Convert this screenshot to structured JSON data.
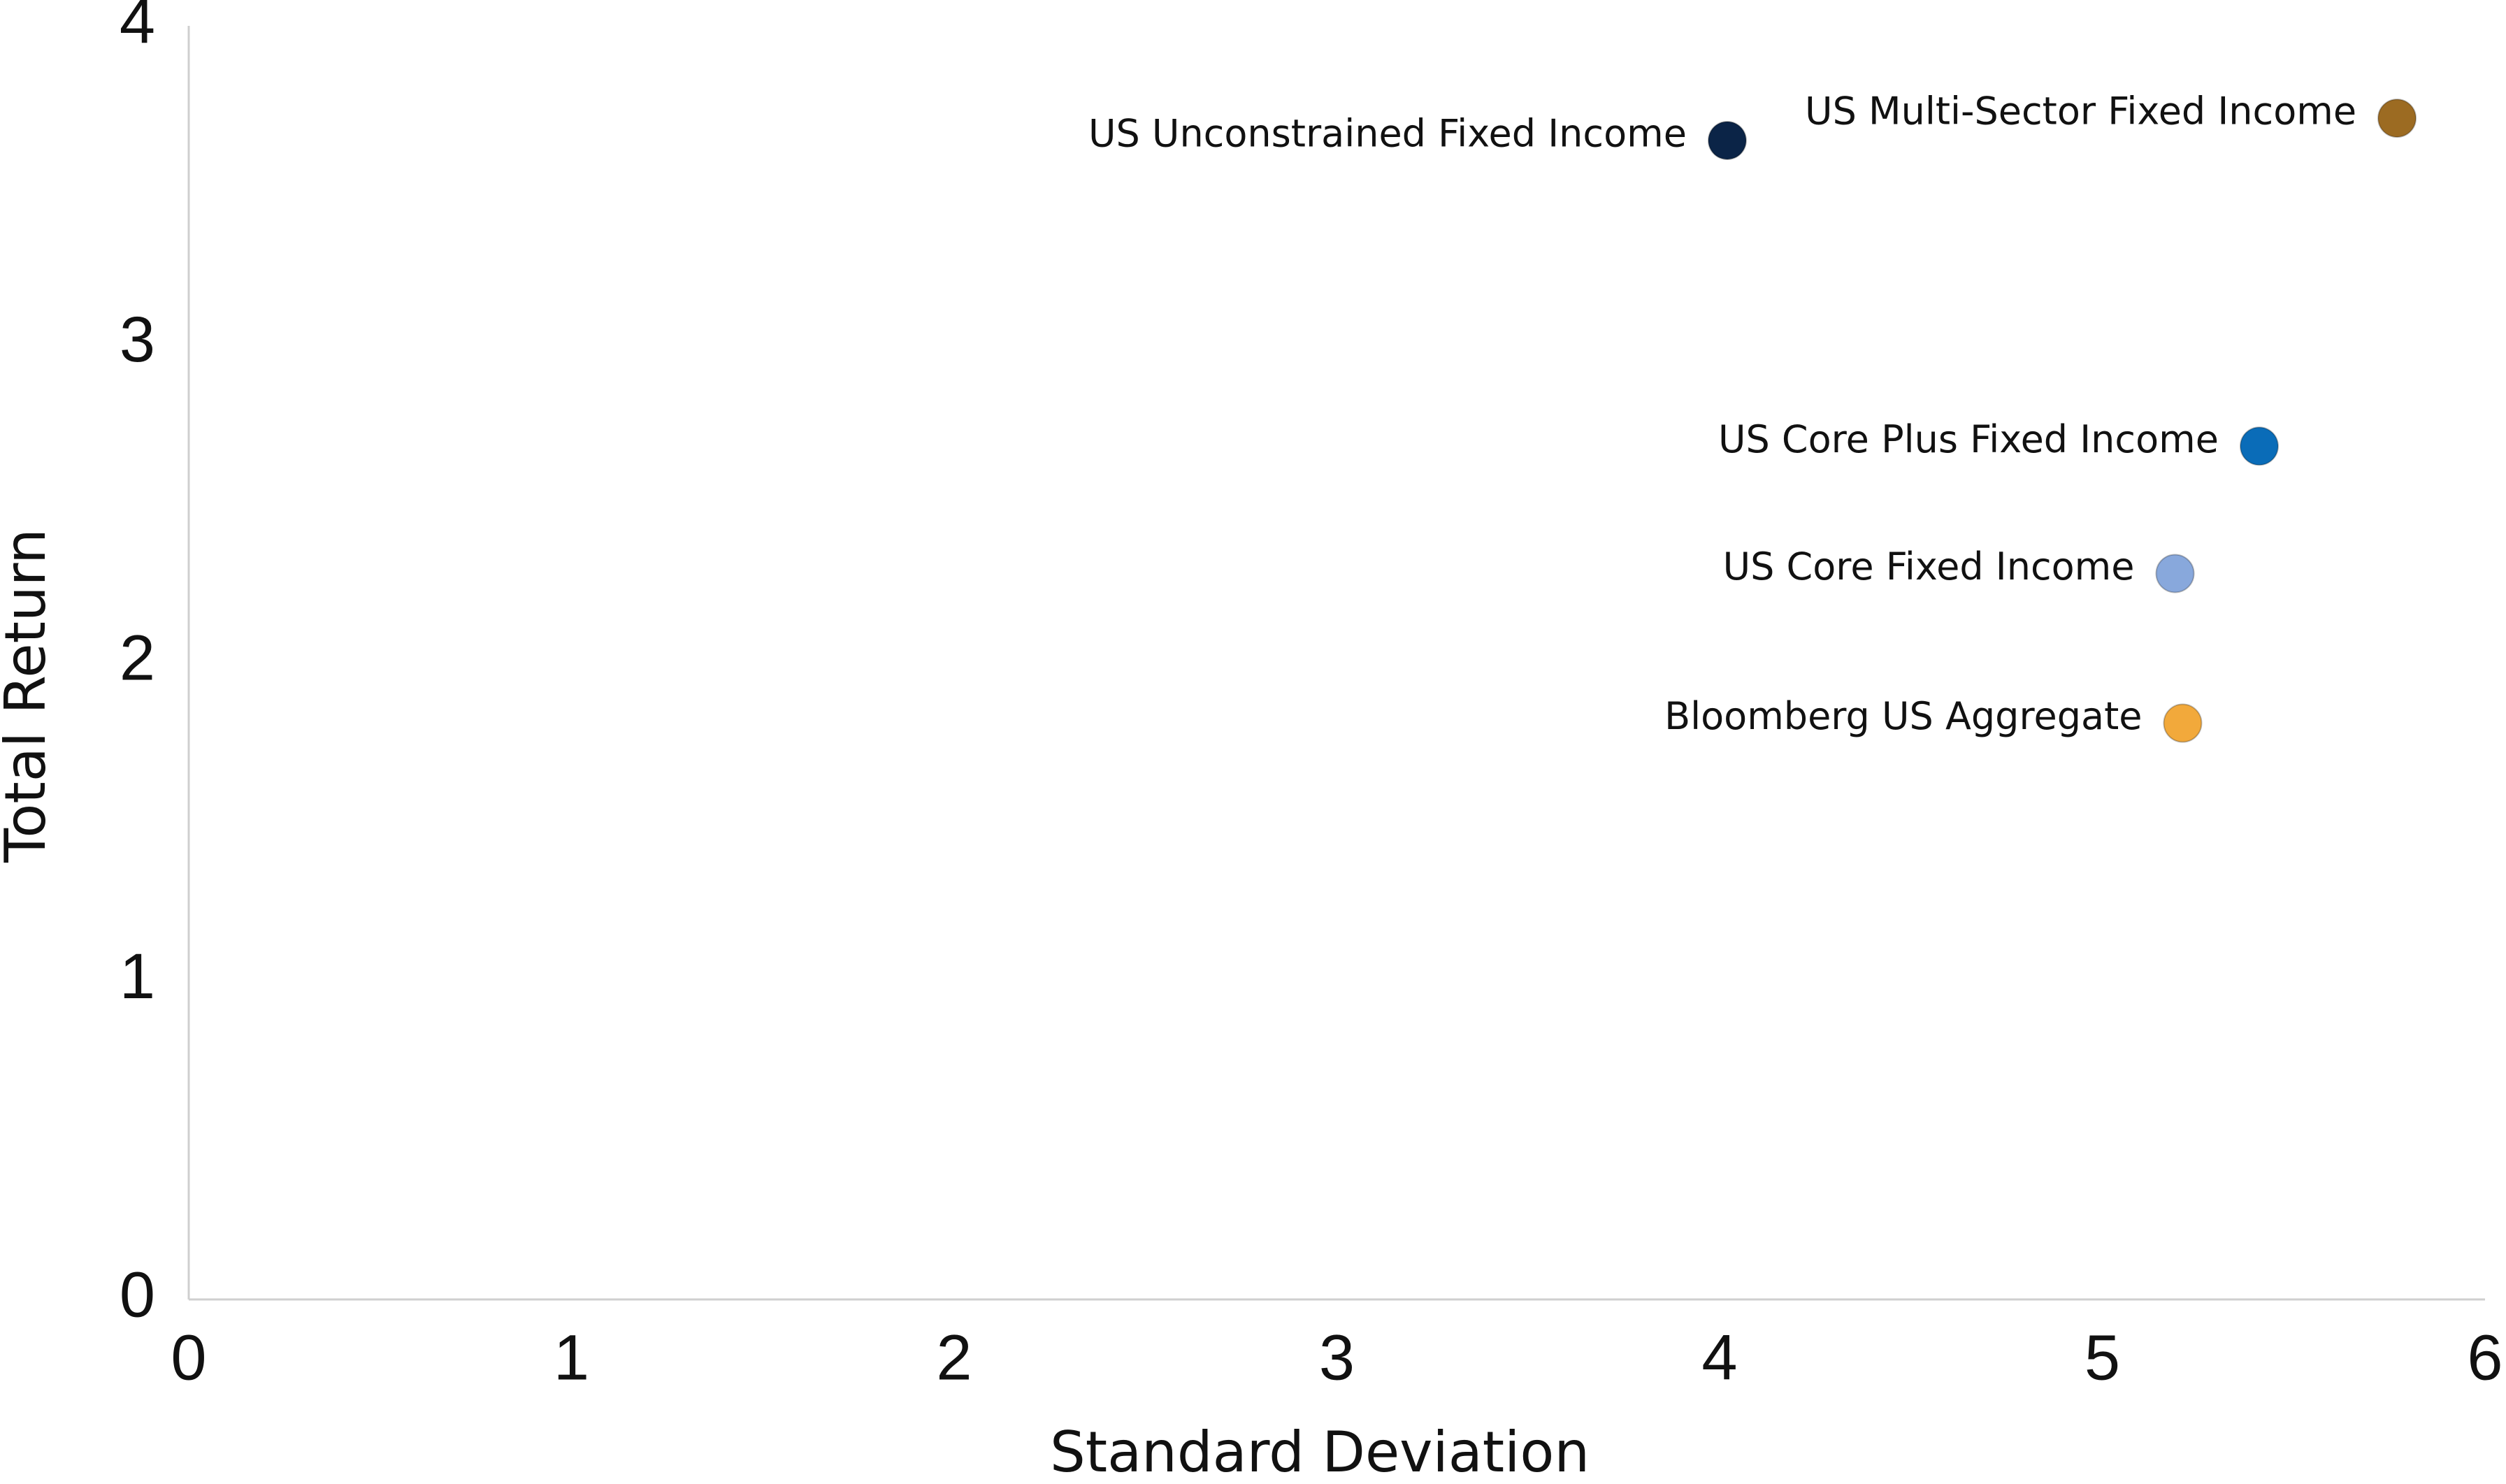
{
  "chart_data": {
    "type": "scatter",
    "x_label": "Standard Deviation",
    "y_label": "Total Return",
    "xlim": [
      0,
      6
    ],
    "xticks": [
      0,
      1,
      2,
      3,
      4,
      5,
      6
    ],
    "ylim": [
      0,
      4
    ],
    "yticks": [
      0,
      1,
      2,
      3,
      4
    ],
    "grid": false,
    "series": [
      {
        "name": "US Unconstrained Fixed Income",
        "color": "#0b2447",
        "x": [
          4.02
        ],
        "values": [
          3.64
        ]
      },
      {
        "name": "US Multi-Sector Fixed Income",
        "color": "#9c6b22",
        "x": [
          5.77
        ],
        "values": [
          3.71
        ]
      },
      {
        "name": "US Core Plus Fixed Income",
        "color": "#0a6cb8",
        "x": [
          5.41
        ],
        "values": [
          2.68
        ]
      },
      {
        "name": "US Core Fixed Income",
        "color": "#88a8dc",
        "x": [
          5.19
        ],
        "values": [
          2.28
        ]
      },
      {
        "name": "Bloomberg US Aggregate",
        "color": "#f2a93b",
        "x": [
          5.21
        ],
        "values": [
          1.81
        ]
      }
    ]
  }
}
